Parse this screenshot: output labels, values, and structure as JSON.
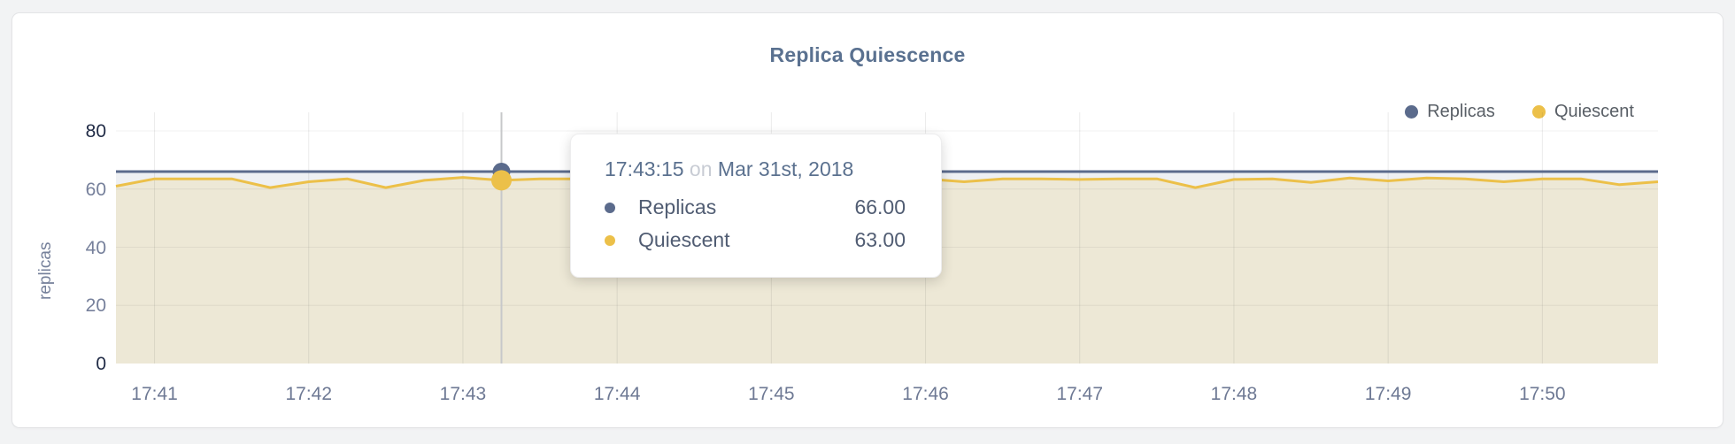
{
  "accent_colors": {
    "replicas": "#5b6b8c",
    "quiescent": "#ecc049",
    "crosshair": "#c7c8ca"
  },
  "chart_data": {
    "type": "line",
    "title": "Replica Quiescence",
    "ylabel": "replicas",
    "xlabel": "",
    "grid": true,
    "legend_position": "top-right",
    "ylim": [
      0,
      80
    ],
    "x_start_time": "17:40:45",
    "x_interval_seconds": 15,
    "x_span_seconds": 600,
    "x_ticks": [
      "17:41",
      "17:42",
      "17:43",
      "17:44",
      "17:45",
      "17:46",
      "17:47",
      "17:48",
      "17:49",
      "17:50"
    ],
    "y_ticks": [
      {
        "label": "80",
        "value": 80,
        "strong": true
      },
      {
        "label": "60",
        "value": 60,
        "strong": false
      },
      {
        "label": "40",
        "value": 40,
        "strong": false
      },
      {
        "label": "20",
        "value": 20,
        "strong": false
      },
      {
        "label": "0",
        "value": 0,
        "strong": true
      }
    ],
    "series": [
      {
        "name": "Replicas",
        "color": "#5b6b8c",
        "fill": "rgba(91,107,140,0.10)",
        "values": [
          66,
          66,
          66,
          66,
          66,
          66,
          66,
          66,
          66,
          66,
          66,
          66,
          66,
          66,
          66,
          66,
          66,
          66,
          66,
          66,
          66,
          66,
          66,
          66,
          66,
          66,
          66,
          66,
          66,
          66,
          66,
          66,
          66,
          66,
          66,
          66,
          66,
          66,
          66,
          66,
          66
        ]
      },
      {
        "name": "Quiescent",
        "color": "#ecc049",
        "fill": "rgba(237,194,64,0.16)",
        "values": [
          61,
          63.5,
          63.5,
          63.5,
          60.5,
          62.5,
          63.5,
          60.5,
          63,
          64,
          63,
          63.5,
          63.5,
          62.5,
          63.5,
          63.5,
          63,
          63.5,
          63.5,
          60.5,
          63.5,
          63.5,
          62.5,
          63.5,
          63.5,
          63.3,
          63.5,
          63.5,
          60.5,
          63.3,
          63.5,
          62.3,
          63.8,
          62.8,
          63.8,
          63.5,
          62.5,
          63.5,
          63.5,
          61.5,
          62.5
        ]
      }
    ],
    "hover": {
      "index": 10,
      "time": "17:43:15",
      "conjunction": "on",
      "date": "Mar 31st, 2018",
      "rows": [
        {
          "series": "Replicas",
          "value": "66.00"
        },
        {
          "series": "Quiescent",
          "value": "63.00"
        }
      ]
    }
  },
  "legend": {
    "items": [
      {
        "label": "Replicas"
      },
      {
        "label": "Quiescent"
      }
    ]
  }
}
